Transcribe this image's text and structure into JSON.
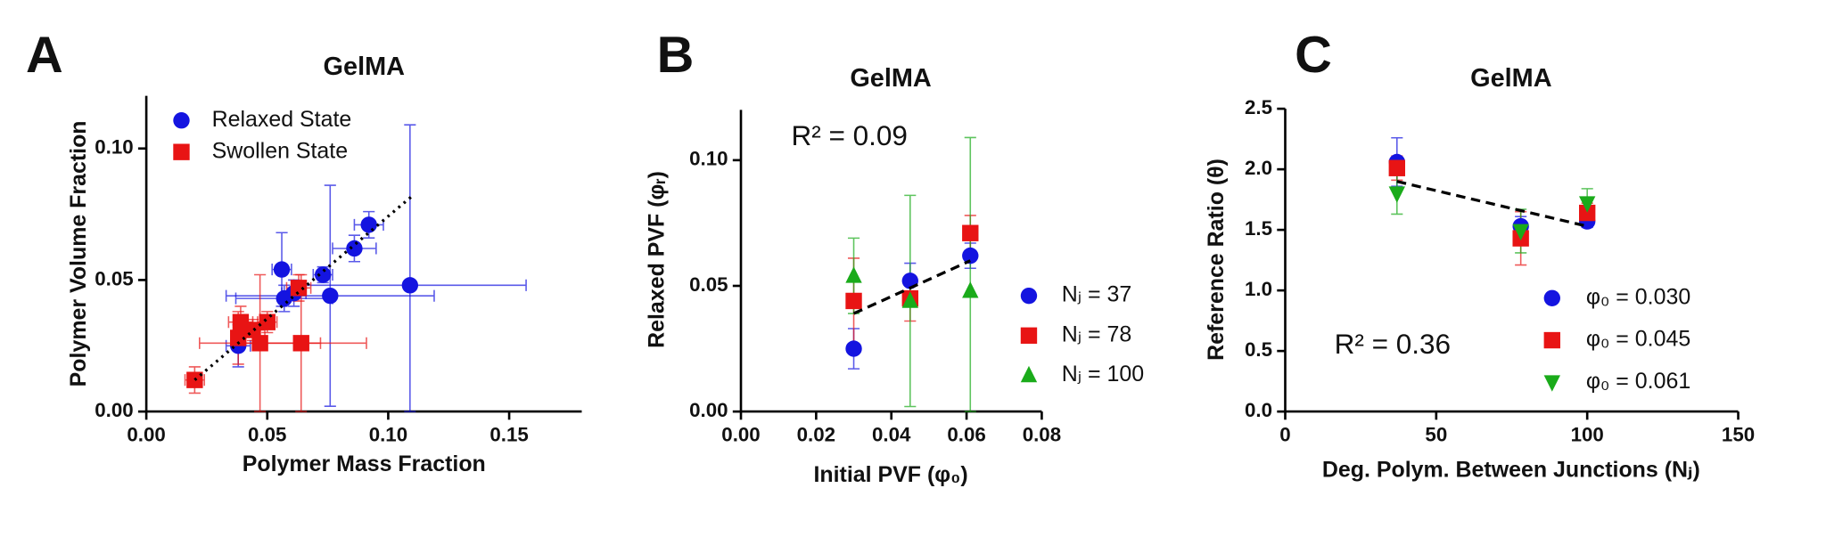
{
  "chart_data": [
    {
      "type": "scatter",
      "panel": "A",
      "title": "GelMA",
      "xlabel": "Polymer Mass Fraction",
      "ylabel": "Polymer Volume  Fraction",
      "xlim": [
        0,
        0.18
      ],
      "ylim": [
        0,
        0.12
      ],
      "xticks": [
        {
          "value": 0,
          "label": "0.00"
        },
        {
          "value": 0.05,
          "label": "0.05"
        },
        {
          "value": 0.1,
          "label": "0.10"
        },
        {
          "value": 0.15,
          "label": "0.15"
        }
      ],
      "yticks": [
        {
          "value": 0,
          "label": "0.00"
        },
        {
          "value": 0.05,
          "label": "0.05"
        },
        {
          "value": 0.1,
          "label": "0.10"
        }
      ],
      "legend": "upper left",
      "series": [
        {
          "name": "Relaxed State",
          "color": "#1414e0",
          "marker": "circle",
          "x": [
            0.038,
            0.056,
            0.057,
            0.061,
            0.073,
            0.076,
            0.086,
            0.092,
            0.109
          ],
          "y": [
            0.025,
            0.054,
            0.043,
            0.045,
            0.052,
            0.044,
            0.062,
            0.071,
            0.048
          ],
          "x_err": [
            0.005,
            0.004,
            0.02,
            0.005,
            0.004,
            0.043,
            0.009,
            0.006,
            0.048
          ],
          "y_err": [
            0.008,
            0.014,
            0.005,
            0.005,
            0.003,
            0.042,
            0.005,
            0.005,
            0.061
          ]
        },
        {
          "name": "Swollen State",
          "color": "#e81414",
          "marker": "square",
          "x": [
            0.02,
            0.038,
            0.039,
            0.044,
            0.047,
            0.05,
            0.063,
            0.064
          ],
          "y": [
            0.012,
            0.028,
            0.034,
            0.031,
            0.026,
            0.034,
            0.047,
            0.026
          ],
          "x_err": [
            0.004,
            0.003,
            0.005,
            0.005,
            0.025,
            0.004,
            0.005,
            0.027
          ],
          "y_err": [
            0.005,
            0.01,
            0.006,
            0.004,
            0.026,
            0.004,
            0.005,
            0.026
          ]
        }
      ],
      "fit": {
        "style": "dotted",
        "x": [
          0.02,
          0.11
        ],
        "y": [
          0.012,
          0.082
        ]
      }
    },
    {
      "type": "scatter",
      "panel": "B",
      "title": "GelMA",
      "xlabel": "Initial PVF (φ₀)",
      "ylabel": "Relaxed PVF (φᵣ)",
      "xlim": [
        0,
        0.08
      ],
      "ylim": [
        0,
        0.12
      ],
      "xticks": [
        {
          "value": 0,
          "label": "0.00"
        },
        {
          "value": 0.02,
          "label": "0.02"
        },
        {
          "value": 0.04,
          "label": "0.04"
        },
        {
          "value": 0.06,
          "label": "0.06"
        },
        {
          "value": 0.08,
          "label": "0.08"
        }
      ],
      "yticks": [
        {
          "value": 0,
          "label": "0.00"
        },
        {
          "value": 0.05,
          "label": "0.05"
        },
        {
          "value": 0.1,
          "label": "0.10"
        }
      ],
      "legend": "right",
      "annotation": "R² = 0.09",
      "series": [
        {
          "name": "Nⱼ = 37",
          "color": "#1414e0",
          "marker": "circle",
          "x": [
            0.03,
            0.045,
            0.061
          ],
          "y": [
            0.025,
            0.052,
            0.062
          ],
          "y_err": [
            0.008,
            0.007,
            0.005
          ]
        },
        {
          "name": "Nⱼ = 78",
          "color": "#e81414",
          "marker": "square",
          "x": [
            0.03,
            0.045,
            0.061
          ],
          "y": [
            0.044,
            0.045,
            0.071
          ],
          "y_err": [
            0.017,
            0.009,
            0.007
          ]
        },
        {
          "name": "Nⱼ = 100",
          "color": "#1aab1a",
          "marker": "triangle",
          "x": [
            0.03,
            0.045,
            0.061
          ],
          "y": [
            0.054,
            0.044,
            0.048
          ],
          "y_err": [
            0.015,
            0.042,
            0.061
          ]
        }
      ],
      "fit": {
        "style": "dashed",
        "x": [
          0.03,
          0.061
        ],
        "y": [
          0.039,
          0.06
        ]
      }
    },
    {
      "type": "scatter",
      "panel": "C",
      "title": "GelMA",
      "xlabel": "Deg. Polym. Between Junctions (Nⱼ)",
      "ylabel": "Reference Ratio (θ)",
      "xlim": [
        0,
        150
      ],
      "ylim": [
        0,
        2.5
      ],
      "xticks": [
        0,
        50,
        100,
        150
      ],
      "yticks": [
        {
          "value": 0,
          "label": "0.0"
        },
        {
          "value": 0.5,
          "label": "0.5"
        },
        {
          "value": 1,
          "label": "1.0"
        },
        {
          "value": 1.5,
          "label": "1.5"
        },
        {
          "value": 2,
          "label": "2.0"
        },
        {
          "value": 2.5,
          "label": "2.5"
        }
      ],
      "legend": "lower right",
      "annotation": "R² = 0.36",
      "series": [
        {
          "name": "φ₀ = 0.030",
          "color": "#1414e0",
          "marker": "circle",
          "x": [
            37,
            78,
            100
          ],
          "y": [
            2.06,
            1.53,
            1.57
          ],
          "y_err": [
            0.2,
            0.08,
            0.05
          ]
        },
        {
          "name": "φ₀ = 0.045",
          "color": "#e81414",
          "marker": "square",
          "x": [
            37,
            78,
            100
          ],
          "y": [
            2.01,
            1.43,
            1.64
          ],
          "y_err": [
            0.1,
            0.22,
            0.08
          ]
        },
        {
          "name": "φ₀ = 0.061",
          "color": "#1aab1a",
          "marker": "triangle-down",
          "x": [
            37,
            78,
            100
          ],
          "y": [
            1.8,
            1.49,
            1.72
          ],
          "y_err": [
            0.17,
            0.18,
            0.12
          ]
        }
      ],
      "fit": {
        "style": "dashed",
        "x": [
          37,
          100
        ],
        "y": [
          1.9,
          1.53
        ]
      }
    }
  ]
}
